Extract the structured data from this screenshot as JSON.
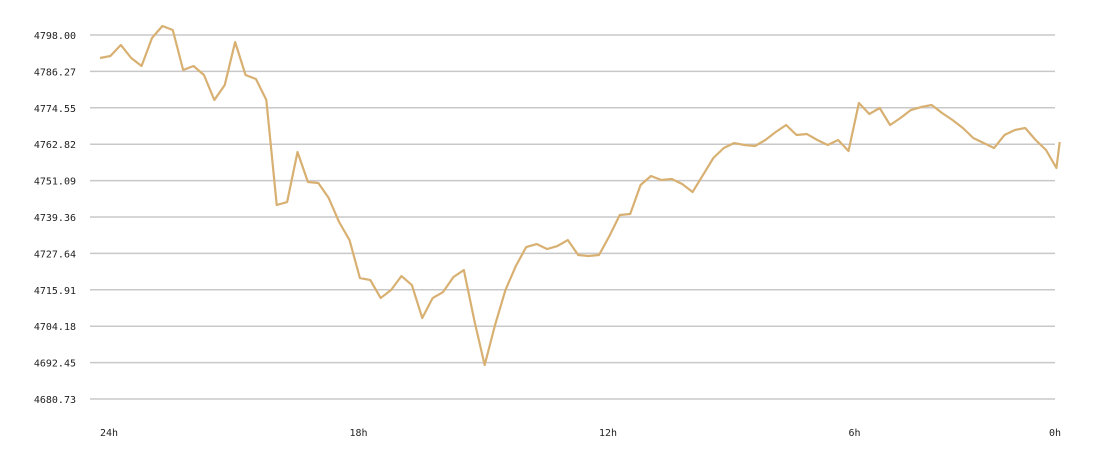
{
  "chart_data": {
    "type": "line",
    "x": [
      24,
      23.75,
      23.5,
      23.25,
      23,
      22.75,
      22.5,
      22.25,
      22,
      21.75,
      21.5,
      21.25,
      21,
      20.75,
      20.5,
      20.25,
      20,
      19.75,
      19.5,
      19.25,
      19,
      18.75,
      18.5,
      18.25,
      18,
      17.75,
      17.5,
      17.25,
      17,
      16.75,
      16.5,
      16.25,
      16,
      15.75,
      15.5,
      15.25,
      15,
      14.75,
      14.5,
      14.25,
      14,
      13.75,
      13.5,
      13.25,
      13,
      12.75,
      12.5,
      12.25,
      12,
      11.75,
      11.5,
      11.25,
      11,
      10.75,
      10.5,
      10.25,
      10,
      9.75,
      9.5,
      9.25,
      9,
      8.75,
      8.5,
      8.25,
      8,
      7.75,
      7.5,
      7.25,
      7,
      6.75,
      6.5,
      6.25,
      6,
      5.75,
      5.5,
      5.25,
      5,
      4.75,
      4.5,
      4.25,
      4,
      3.75,
      3.5,
      3.25,
      3,
      2.75,
      2.5,
      2.25,
      2,
      1.75,
      1.5,
      1.25,
      1,
      0.92
    ],
    "values": [
      4790.59,
      4791.23,
      4794.78,
      4790.59,
      4788.01,
      4797.03,
      4800.9,
      4799.61,
      4786.72,
      4788.01,
      4785.11,
      4777.06,
      4781.89,
      4795.74,
      4785.11,
      4783.82,
      4777.06,
      4743.23,
      4744.19,
      4760.3,
      4750.64,
      4750.31,
      4745.48,
      4737.75,
      4731.95,
      4719.71,
      4719.06,
      4713.26,
      4715.84,
      4720.35,
      4717.45,
      4706.82,
      4713.26,
      4715.19,
      4720.03,
      4722.28,
      4706.17,
      4691.67,
      4704.56,
      4715.84,
      4723.57,
      4729.69,
      4730.66,
      4729.05,
      4730.02,
      4731.95,
      4727.12,
      4726.79,
      4727.12,
      4733.24,
      4740.0,
      4740.33,
      4749.67,
      4752.57,
      4751.28,
      4751.6,
      4749.99,
      4747.41,
      4752.89,
      4758.37,
      4761.59,
      4763.2,
      4762.56,
      4762.24,
      4764.17,
      4766.75,
      4769.0,
      4765.78,
      4766.1,
      4764.17,
      4762.56,
      4764.17,
      4760.62,
      4776.09,
      4772.55,
      4774.48,
      4769.0,
      4771.26,
      4773.83,
      4774.8,
      4775.45,
      4772.87,
      4770.61,
      4768.04,
      4764.81,
      4763.2,
      4761.59,
      4765.78,
      4767.39,
      4768.04,
      4764.17,
      4760.95,
      4755.15,
      4763.53
    ],
    "color": "#d8b072",
    "xlim": [
      24,
      0
    ],
    "xticks": [
      {
        "value": 24,
        "label": "24h"
      },
      {
        "value": 18,
        "label": "18h"
      },
      {
        "value": 12,
        "label": "12h"
      },
      {
        "value": 6,
        "label": "6h"
      },
      {
        "value": 0,
        "label": "0h"
      }
    ],
    "ylim": [
      4680.73,
      4798
    ],
    "yticks": [
      {
        "value": 4798,
        "label": "4798.00"
      },
      4786.27,
      4774.55,
      4762.82,
      4751.09,
      4739.36,
      4727.64,
      4715.91,
      4704.18,
      4692.45,
      4680.73
    ],
    "grid": true
  }
}
